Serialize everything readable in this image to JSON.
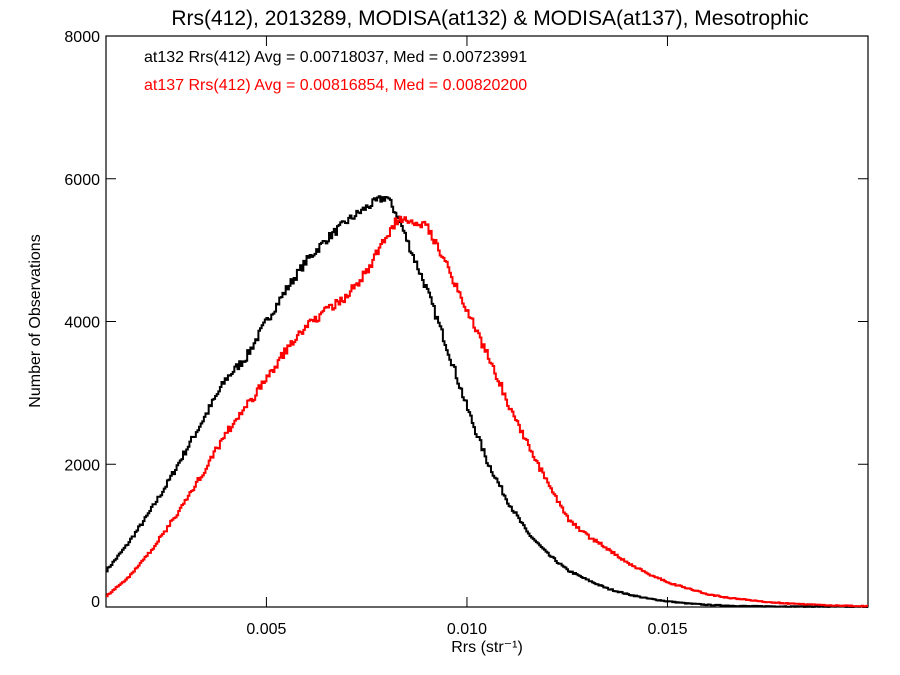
{
  "chart_data": {
    "type": "line",
    "title": "Rrs(412), 2013289, MODISA(at132) & MODISA(at137), Mesotrophic",
    "xlabel": "Rrs (str⁻¹)",
    "ylabel": "Number of Observations",
    "xlim": [
      0.001,
      0.02
    ],
    "ylim": [
      0,
      8000
    ],
    "x_ticks": [
      {
        "value": 0.005,
        "label": "0.005"
      },
      {
        "value": 0.01,
        "label": "0.010"
      },
      {
        "value": 0.015,
        "label": "0.015"
      }
    ],
    "y_ticks": [
      {
        "value": 0,
        "label": "0"
      },
      {
        "value": 2000,
        "label": "2000"
      },
      {
        "value": 4000,
        "label": "4000"
      },
      {
        "value": 6000,
        "label": "6000"
      },
      {
        "value": 8000,
        "label": "8000"
      }
    ],
    "grid": false,
    "annotations": [
      {
        "text": "at132 Rrs(412) Avg = 0.00718037, Med = 0.00723991",
        "color": "#000000"
      },
      {
        "text": "at137 Rrs(412) Avg = 0.00816854, Med = 0.00820200",
        "color": "#ff0000"
      }
    ],
    "series": [
      {
        "color": "#000000",
        "x": [
          0.001,
          0.0015,
          0.002,
          0.0025,
          0.003,
          0.0035,
          0.004,
          0.0045,
          0.005,
          0.0055,
          0.006,
          0.0065,
          0.007,
          0.0075,
          0.0078,
          0.008,
          0.0083,
          0.0085,
          0.009,
          0.0095,
          0.01,
          0.0105,
          0.011,
          0.0115,
          0.012,
          0.0125,
          0.013,
          0.0135,
          0.014,
          0.0145,
          0.015,
          0.0155,
          0.016,
          0.0165,
          0.017,
          0.018,
          0.019,
          0.02
        ],
        "values": [
          500,
          850,
          1250,
          1700,
          2200,
          2700,
          3200,
          3500,
          4000,
          4450,
          4850,
          5150,
          5400,
          5600,
          5700,
          5750,
          5450,
          5150,
          4450,
          3650,
          2800,
          2050,
          1500,
          1050,
          750,
          520,
          380,
          260,
          180,
          120,
          80,
          50,
          30,
          20,
          12,
          8,
          5,
          3
        ]
      },
      {
        "color": "#ff0000",
        "x": [
          0.001,
          0.0015,
          0.002,
          0.0025,
          0.003,
          0.0035,
          0.004,
          0.0045,
          0.005,
          0.0055,
          0.006,
          0.0065,
          0.007,
          0.0075,
          0.008,
          0.0083,
          0.0085,
          0.009,
          0.0095,
          0.01,
          0.0105,
          0.011,
          0.0115,
          0.012,
          0.0125,
          0.013,
          0.0135,
          0.014,
          0.0145,
          0.015,
          0.0155,
          0.016,
          0.0165,
          0.017,
          0.0175,
          0.018,
          0.019,
          0.02
        ],
        "values": [
          150,
          380,
          700,
          1080,
          1500,
          1950,
          2450,
          2800,
          3200,
          3600,
          3950,
          4150,
          4350,
          4700,
          5200,
          5450,
          5450,
          5350,
          4800,
          4150,
          3550,
          2900,
          2300,
          1750,
          1250,
          1000,
          820,
          620,
          470,
          350,
          260,
          180,
          130,
          100,
          70,
          50,
          25,
          10
        ]
      }
    ]
  }
}
